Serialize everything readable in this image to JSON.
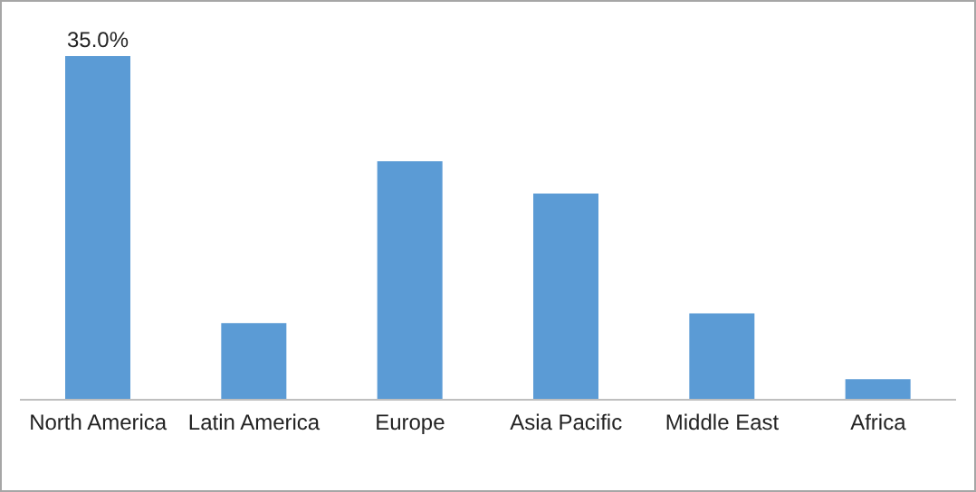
{
  "chart_data": {
    "type": "bar",
    "categories": [
      "North America",
      "Latin America",
      "Europe",
      "Asia Pacific",
      "Middle East",
      "Africa"
    ],
    "values": [
      35.0,
      7.8,
      24.3,
      21.0,
      8.8,
      2.1
    ],
    "value_labels": [
      "35.0%",
      null,
      null,
      null,
      null,
      null
    ],
    "color": "#5b9bd5",
    "grid": false,
    "legend": false
  }
}
